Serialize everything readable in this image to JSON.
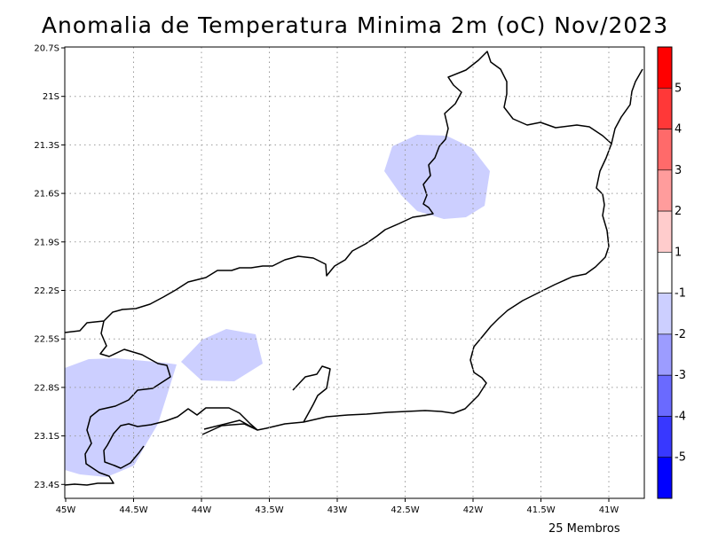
{
  "title": "Anomalia de Temperatura Minima 2m (oC) Nov/2023",
  "footer": "25 Membros",
  "lat_ticks": [
    "20.7S",
    "21S",
    "21.3S",
    "21.6S",
    "21.9S",
    "22.2S",
    "22.5S",
    "22.8S",
    "23.1S",
    "23.4S"
  ],
  "lon_ticks": [
    "45W",
    "44.5W",
    "44W",
    "43.5W",
    "43W",
    "42.5W",
    "42W",
    "41.5W",
    "41W"
  ],
  "map_extent": {
    "lon_min": -45.0,
    "lon_max": -40.7,
    "lat_min": -23.5,
    "lat_max": -20.7
  },
  "grid": true,
  "colorbar": {
    "labels": [
      "5",
      "4",
      "3",
      "2",
      "1",
      "-1",
      "-2",
      "-3",
      "-4",
      "-5"
    ],
    "colors": [
      "#ff0000",
      "#ff3838",
      "#ff6a6a",
      "#ff9c9c",
      "#ffcccc",
      "#ffffff",
      "#cccfff",
      "#9c9cff",
      "#6a6aff",
      "#3838ff",
      "#0000ff"
    ]
  },
  "anomaly_fill_color": "#cccfff"
}
